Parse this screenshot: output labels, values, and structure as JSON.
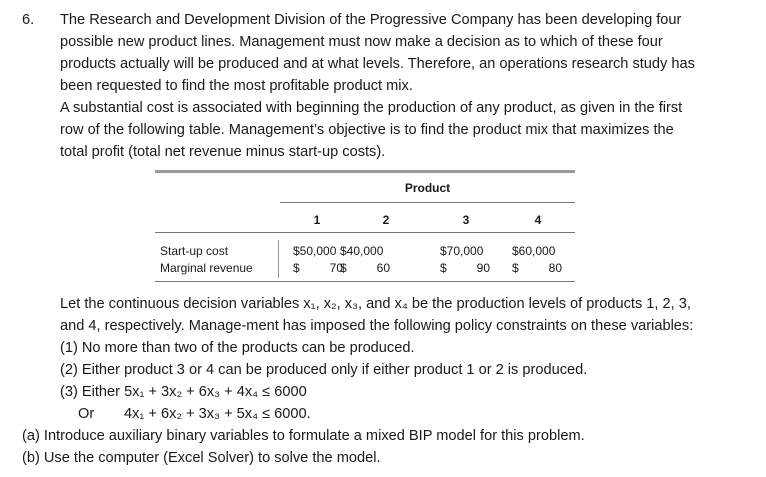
{
  "problem": {
    "number": "6.",
    "intro_lines": [
      "The Research and Development Division of the Progressive Company has been developing four",
      "possible new product lines. Management must now make a decision as to which of these four",
      "products actually will be produced and at what levels. Therefore, an operations research study has",
      "been requested to find the most profitable product mix.",
      "A substantial cost is associated with beginning the production of any product, as given in the first",
      "row of the following table. Management’s objective is to find the product mix that maximizes the",
      "total profit (total net revenue minus start-up costs)."
    ],
    "table": {
      "header": "Product",
      "columns": [
        "1",
        "2",
        "3",
        "4"
      ],
      "rows": [
        {
          "label": "Start-up cost",
          "cells": [
            [
              "$50,000"
            ],
            [
              "$40,000"
            ],
            [
              "$70,000"
            ],
            [
              "$60,000"
            ]
          ]
        },
        {
          "label": "Marginal revenue",
          "cells": [
            [
              "$",
              "70"
            ],
            [
              "$",
              "60"
            ],
            [
              "$",
              "90"
            ],
            [
              "$",
              "80"
            ]
          ]
        }
      ]
    },
    "after_lines": [
      "Let the continuous decision variables x₁, x₂, x₃, and x₄ be the production levels of products 1, 2, 3,",
      "and 4, respectively. Manage-ment has imposed the following policy constraints on these variables:",
      "(1) No more than two of the products can be produced.",
      "(2) Either product 3 or 4 can be produced only if either product 1 or 2 is produced.",
      "(3) Either 5x₁ + 3x₂ + 6x₃ + 4x₄ ≤ 6000"
    ],
    "or_word": "Or",
    "or_constraint": "4x₁ + 6x₂ + 3x₃ + 5x₄ ≤ 6000.",
    "questions": [
      "(a) Introduce auxiliary binary variables to formulate a mixed BIP model for this problem.",
      "(b) Use the computer (Excel Solver) to solve the model."
    ]
  }
}
